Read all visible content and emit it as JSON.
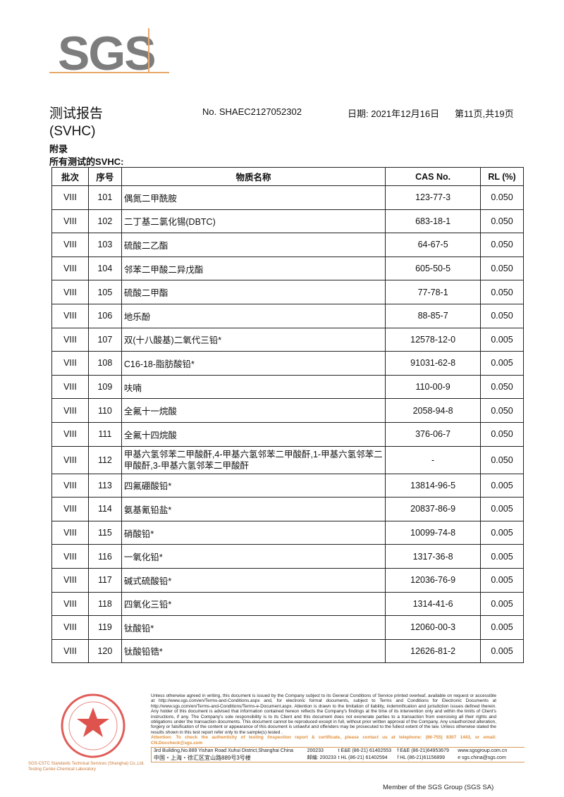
{
  "logo": {
    "text": "SGS"
  },
  "header": {
    "title": "测试报告",
    "subtitle": "(SVHC)",
    "report_no": "No. SHAEC2127052302",
    "date": "日期: 2021年12月16日",
    "page": "第11页,共19页"
  },
  "section": {
    "appendix": "附录",
    "heading": "所有测试的SVHC:"
  },
  "table": {
    "headers": [
      "批次",
      "序号",
      "物质名称",
      "CAS No.",
      "RL (%)"
    ],
    "rows": [
      {
        "batch": "VIII",
        "no": "101",
        "name": "偶氮二甲酰胺",
        "cas": "123-77-3",
        "rl": "0.050"
      },
      {
        "batch": "VIII",
        "no": "102",
        "name": "二丁基二氯化锡(DBTC)",
        "cas": "683-18-1",
        "rl": "0.050"
      },
      {
        "batch": "VIII",
        "no": "103",
        "name": "硫酸二乙酯",
        "cas": "64-67-5",
        "rl": "0.050"
      },
      {
        "batch": "VIII",
        "no": "104",
        "name": "邻苯二甲酸二异戊酯",
        "cas": "605-50-5",
        "rl": "0.050"
      },
      {
        "batch": "VIII",
        "no": "105",
        "name": "硫酸二甲酯",
        "cas": "77-78-1",
        "rl": "0.050"
      },
      {
        "batch": "VIII",
        "no": "106",
        "name": "地乐酚",
        "cas": "88-85-7",
        "rl": "0.050"
      },
      {
        "batch": "VIII",
        "no": "107",
        "name": "双(十八酸基)二氧代三铅*",
        "cas": "12578-12-0",
        "rl": "0.005"
      },
      {
        "batch": "VIII",
        "no": "108",
        "name": "C16-18-脂肪酸铅*",
        "cas": "91031-62-8",
        "rl": "0.005"
      },
      {
        "batch": "VIII",
        "no": "109",
        "name": "呋喃",
        "cas": "110-00-9",
        "rl": "0.050"
      },
      {
        "batch": "VIII",
        "no": "110",
        "name": "全氟十一烷酸",
        "cas": "2058-94-8",
        "rl": "0.050"
      },
      {
        "batch": "VIII",
        "no": "111",
        "name": "全氟十四烷酸",
        "cas": "376-06-7",
        "rl": "0.050"
      },
      {
        "batch": "VIII",
        "no": "112",
        "name": "甲基六氢邻苯二甲酸酐,4-甲基六氢邻苯二甲酸酐,1-甲基六氢邻苯二甲酸酐,3-甲基六氢邻苯二甲酸酐",
        "cas": "-",
        "rl": "0.050"
      },
      {
        "batch": "VIII",
        "no": "113",
        "name": "四氟硼酸铅*",
        "cas": "13814-96-5",
        "rl": "0.005"
      },
      {
        "batch": "VIII",
        "no": "114",
        "name": "氨基氰铅盐*",
        "cas": "20837-86-9",
        "rl": "0.005"
      },
      {
        "batch": "VIII",
        "no": "115",
        "name": "硝酸铅*",
        "cas": "10099-74-8",
        "rl": "0.005"
      },
      {
        "batch": "VIII",
        "no": "116",
        "name": "一氧化铅*",
        "cas": "1317-36-8",
        "rl": "0.005"
      },
      {
        "batch": "VIII",
        "no": "117",
        "name": "碱式硫酸铅*",
        "cas": "12036-76-9",
        "rl": "0.005"
      },
      {
        "batch": "VIII",
        "no": "118",
        "name": "四氧化三铅*",
        "cas": "1314-41-6",
        "rl": "0.005"
      },
      {
        "batch": "VIII",
        "no": "119",
        "name": "钛酸铅*",
        "cas": "12060-00-3",
        "rl": "0.005"
      },
      {
        "batch": "VIII",
        "no": "120",
        "name": "钛酸铅锆*",
        "cas": "12626-81-2",
        "rl": "0.005"
      }
    ]
  },
  "footer": {
    "terms": "Unless otherwise agreed in writing, this document is issued by the Company subject to its General Conditions of Service printed overleaf, available on request or accessible at http://www.sgs.com/en/Terms-and-Conditions.aspx and, for electronic format documents, subject to Terms and Conditions for Electronic Documents at http://www.sgs.com/en/Terms-and-Conditions/Terms-e-Document.aspx. Attention is drawn to the limitation of liability, indemnification and jurisdiction issues defined therein. Any holder of this document is advised that information contained hereon reflects the Company's findings at the time of its intervention only and within the limits of Client's instructions, if any. The Company's sole responsibility is to its Client and this document does not exonerate parties to a transaction from exercising all their rights and obligations under the transaction documents. This document cannot be reproduced except in full, without prior written approval of the Company. Any unauthorized alteration, forgery or falsification of the content or appearance of this document is unlawful and offenders may be prosecuted to the fullest extent of the law. Unless otherwise stated the results shown in this test report refer only to the sample(s) tested .",
    "attention": "Attention: To check the authenticity of testing /inspection report & certificate, please contact us at telephone: (86-755) 8307 1443, or email: CN.Doccheck@sgs.com",
    "addr_en": "3rd Building,No.889 Yishan Road Xuhui District,Shanghai China",
    "addr_cn": "中国・上海・徐汇区宜山路889号3号楼",
    "zip_en": "200233",
    "zip_cn": "邮编: 200233",
    "tel1": "t E&E (86-21) 61402553",
    "fax1": "f E&E (86-21)64953679",
    "tel2": "t HL (86-21) 61402594",
    "fax2": "f HL (86-21)61156899",
    "web": "www.sgsgroup.com.cn",
    "email": "e  sgs.china@sgs.com",
    "member": "Member of the SGS Group (SGS SA)",
    "stamp_caption1": "SGS-CSTC Standards Technical Services (Shanghai) Co.,Ltd.",
    "stamp_caption2": "Testing Center-Chemical Laboratory",
    "stamp_text": "检验检测专用章 Inspection & Testing Services"
  },
  "colors": {
    "logo_gray": "#7d7d7d",
    "accent_orange": "#e0903a",
    "stamp_red": "#d8352f"
  }
}
